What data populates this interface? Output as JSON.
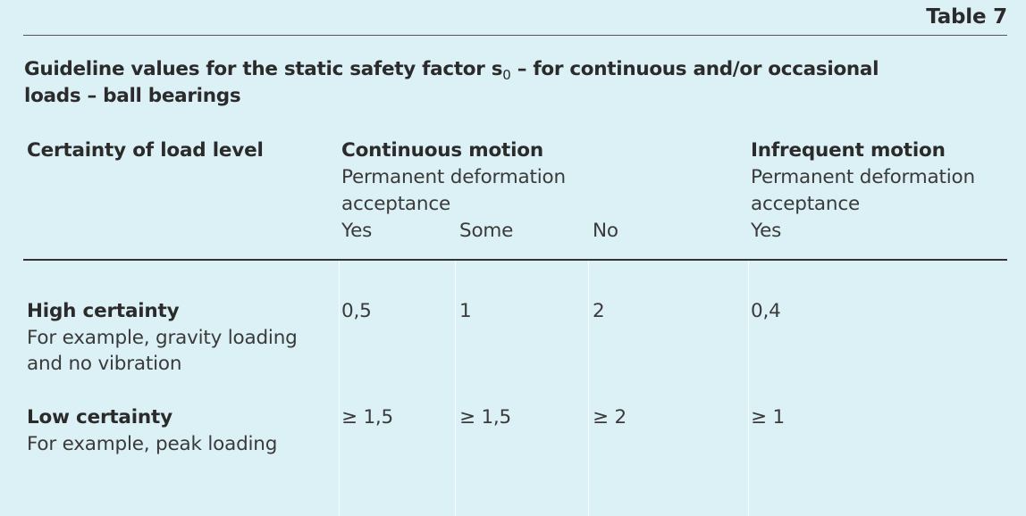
{
  "table_label": "Table 7",
  "title": {
    "before_subscript": "Guideline values for the static safety factor s",
    "subscript": "0",
    "after_subscript": " – for continuous and/or occasional",
    "line2": "loads – ball bearings"
  },
  "header": {
    "col1": "Certainty of load level",
    "group1": {
      "title": "Continuous motion",
      "subtitle_line1": "Permanent deformation",
      "subtitle_line2": "acceptance",
      "sub_cols": [
        "Yes",
        "Some",
        "No"
      ]
    },
    "group2": {
      "title": "Infrequent motion",
      "subtitle_line1": "Permanent deformation",
      "subtitle_line2": "acceptance",
      "sub_cols": [
        "Yes"
      ]
    }
  },
  "rows": [
    {
      "label": "High certainty",
      "description_line1": "For example, gravity loading",
      "description_line2": "and no vibration",
      "values": [
        "0,5",
        "1",
        "2",
        "0,4"
      ]
    },
    {
      "label": "Low certainty",
      "description_line1": "For example, peak loading",
      "description_line2": "",
      "values": [
        "≥ 1,5",
        "≥ 1,5",
        "≥ 2",
        "≥ 1"
      ]
    }
  ]
}
